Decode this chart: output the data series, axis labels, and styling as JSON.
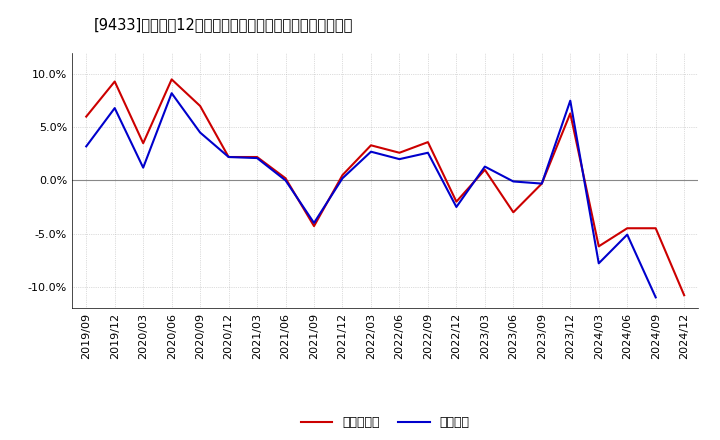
{
  "title": "[9433]　利益の12か月移動合計の対前年同期増減率の推移",
  "x_labels": [
    "2019/09",
    "2019/12",
    "2020/03",
    "2020/06",
    "2020/09",
    "2020/12",
    "2021/03",
    "2021/06",
    "2021/09",
    "2021/12",
    "2022/03",
    "2022/06",
    "2022/09",
    "2022/12",
    "2023/03",
    "2023/06",
    "2023/09",
    "2023/12",
    "2024/03",
    "2024/06",
    "2024/09",
    "2024/12"
  ],
  "operating_profit": [
    3.2,
    6.8,
    1.2,
    8.2,
    4.5,
    2.2,
    2.1,
    0.0,
    -4.0,
    0.2,
    2.7,
    2.0,
    2.6,
    -2.5,
    1.3,
    -0.1,
    -0.3,
    7.5,
    -7.8,
    -5.1,
    -11.0,
    null
  ],
  "net_profit": [
    6.0,
    9.3,
    3.5,
    9.5,
    7.0,
    2.2,
    2.2,
    0.2,
    -4.3,
    0.5,
    3.3,
    2.6,
    3.6,
    -2.0,
    1.0,
    -3.0,
    -0.3,
    6.3,
    -6.2,
    -4.5,
    -4.5,
    -10.8
  ],
  "ylim": [
    -12,
    12
  ],
  "yticks": [
    -10.0,
    -5.0,
    0.0,
    5.0,
    10.0
  ],
  "line_color_operating": "#0000cc",
  "line_color_net": "#cc0000",
  "legend_operating": "経常利益",
  "legend_net": "当期純利益",
  "bg_color": "#ffffff",
  "plot_bg_color": "#ffffff",
  "grid_color": "#aaaaaa",
  "zero_line_color": "#888888"
}
